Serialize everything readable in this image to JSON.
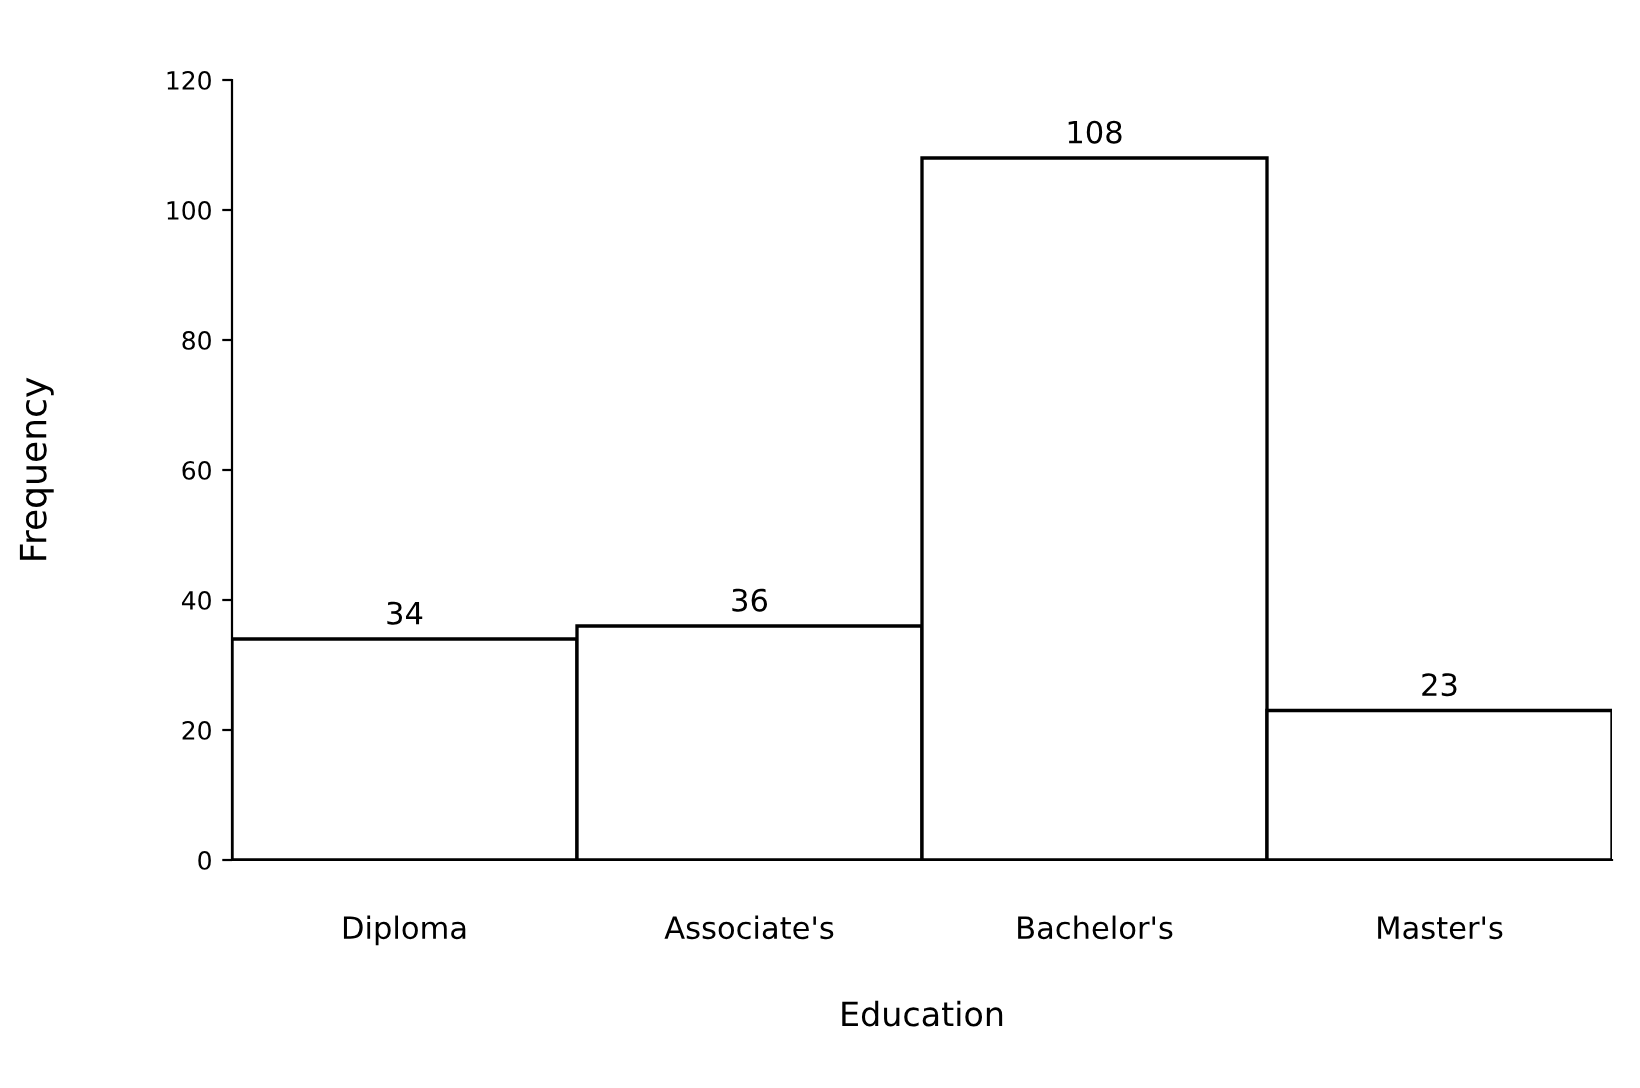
{
  "chart_data": {
    "type": "bar",
    "xlabel": "Education",
    "ylabel": "Frequency",
    "categories": [
      "Diploma",
      "Associate's",
      "Bachelor's",
      "Master's"
    ],
    "values": [
      34,
      36,
      108,
      23
    ],
    "color": "#ffffff",
    "ylim": [
      0,
      120
    ],
    "yticks": [
      0,
      20,
      40,
      60,
      80,
      100,
      120
    ],
    "grid": false,
    "data_labels": true
  }
}
